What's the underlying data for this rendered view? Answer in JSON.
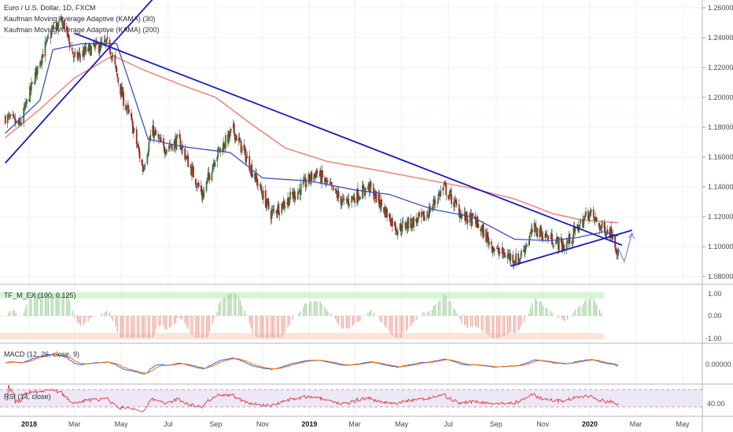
{
  "header": {
    "title": "Euro / U.S. Dollar, 1D, FXCM",
    "studies": [
      "Kaufman Moving Average Adaptive (KAMA) (30)",
      "Kaufman Moving Average Adaptive (KAMA) (200)"
    ]
  },
  "panes": {
    "tfm": {
      "label": "TF_M_EX (100, 0.125)",
      "ticks": [
        "1.00",
        "0.00",
        "-1.00"
      ]
    },
    "macd": {
      "label": "MACD (12, 26, close, 9)",
      "ticks": [
        "0.00000"
      ]
    },
    "rsi": {
      "label": "RSI (14, close)",
      "ticks": [
        "40.00"
      ]
    }
  },
  "colors": {
    "up": "#2e7d32",
    "down": "#b71c1c",
    "kama30": "#3f51b5",
    "kama200": "#ef8a80",
    "trend": "#1a1ab8",
    "grid": "#eef0f3",
    "macd": "#2962ff",
    "signal": "#ff6d00",
    "rsi": "#e53935"
  },
  "chart_data": {
    "type": "candlestick",
    "symbol": "Euro / U.S. Dollar, 1D, FXCM",
    "y_axis_ticks": [
      "1.26000",
      "1.24000",
      "1.22000",
      "1.20000",
      "1.18000",
      "1.16000",
      "1.14000",
      "1.12000",
      "1.10000",
      "1.08000"
    ],
    "ylim": [
      1.075,
      1.265
    ],
    "x_axis_ticks": [
      "2018",
      "Mar",
      "May",
      "Jul",
      "Sep",
      "Nov",
      "2019",
      "Mar",
      "May",
      "Jul",
      "Sep",
      "Nov",
      "2020",
      "Mar",
      "May"
    ],
    "price_path": [
      {
        "date": "2017-12-01",
        "close": 1.187
      },
      {
        "date": "2017-12-20",
        "close": 1.181
      },
      {
        "date": "2018-01-15",
        "close": 1.225
      },
      {
        "date": "2018-02-01",
        "close": 1.246
      },
      {
        "date": "2018-02-15",
        "close": 1.25
      },
      {
        "date": "2018-03-01",
        "close": 1.226
      },
      {
        "date": "2018-03-20",
        "close": 1.232
      },
      {
        "date": "2018-04-15",
        "close": 1.236
      },
      {
        "date": "2018-05-01",
        "close": 1.203
      },
      {
        "date": "2018-05-15",
        "close": 1.182
      },
      {
        "date": "2018-05-29",
        "close": 1.152
      },
      {
        "date": "2018-06-10",
        "close": 1.178
      },
      {
        "date": "2018-06-25",
        "close": 1.166
      },
      {
        "date": "2018-07-15",
        "close": 1.171
      },
      {
        "date": "2018-08-15",
        "close": 1.134
      },
      {
        "date": "2018-08-31",
        "close": 1.16
      },
      {
        "date": "2018-09-24",
        "close": 1.178
      },
      {
        "date": "2018-10-15",
        "close": 1.155
      },
      {
        "date": "2018-11-12",
        "close": 1.122
      },
      {
        "date": "2018-12-15",
        "close": 1.136
      },
      {
        "date": "2019-01-10",
        "close": 1.15
      },
      {
        "date": "2019-02-15",
        "close": 1.129
      },
      {
        "date": "2019-03-20",
        "close": 1.14
      },
      {
        "date": "2019-04-25",
        "close": 1.112
      },
      {
        "date": "2019-06-01",
        "close": 1.12
      },
      {
        "date": "2019-06-25",
        "close": 1.14
      },
      {
        "date": "2019-07-20",
        "close": 1.12
      },
      {
        "date": "2019-08-05",
        "close": 1.117
      },
      {
        "date": "2019-09-01",
        "close": 1.097
      },
      {
        "date": "2019-09-30",
        "close": 1.091
      },
      {
        "date": "2019-10-20",
        "close": 1.112
      },
      {
        "date": "2019-11-29",
        "close": 1.1
      },
      {
        "date": "2019-12-31",
        "close": 1.123
      },
      {
        "date": "2020-01-15",
        "close": 1.113
      },
      {
        "date": "2020-01-31",
        "close": 1.109
      },
      {
        "date": "2020-02-07",
        "close": 1.095
      }
    ],
    "kama30": [
      {
        "date": "2017-12-01",
        "value": 1.176
      },
      {
        "date": "2018-01-15",
        "value": 1.198
      },
      {
        "date": "2018-02-01",
        "value": 1.232
      },
      {
        "date": "2018-03-10",
        "value": 1.236
      },
      {
        "date": "2018-04-25",
        "value": 1.236
      },
      {
        "date": "2018-05-15",
        "value": 1.205
      },
      {
        "date": "2018-06-05",
        "value": 1.172
      },
      {
        "date": "2018-07-20",
        "value": 1.167
      },
      {
        "date": "2018-09-20",
        "value": 1.163
      },
      {
        "date": "2018-11-01",
        "value": 1.146
      },
      {
        "date": "2019-01-01",
        "value": 1.144
      },
      {
        "date": "2019-03-01",
        "value": 1.138
      },
      {
        "date": "2019-04-15",
        "value": 1.135
      },
      {
        "date": "2019-06-10",
        "value": 1.125
      },
      {
        "date": "2019-08-01",
        "value": 1.12
      },
      {
        "date": "2019-09-25",
        "value": 1.105
      },
      {
        "date": "2019-11-10",
        "value": 1.104
      },
      {
        "date": "2019-12-15",
        "value": 1.106
      },
      {
        "date": "2020-01-20",
        "value": 1.11
      },
      {
        "date": "2020-02-07",
        "value": 1.107
      }
    ],
    "kama200": [
      {
        "date": "2017-12-01",
        "value": 1.173
      },
      {
        "date": "2018-01-15",
        "value": 1.192
      },
      {
        "date": "2018-03-01",
        "value": 1.213
      },
      {
        "date": "2018-04-20",
        "value": 1.228
      },
      {
        "date": "2018-06-01",
        "value": 1.218
      },
      {
        "date": "2018-07-20",
        "value": 1.208
      },
      {
        "date": "2018-09-01",
        "value": 1.2
      },
      {
        "date": "2018-10-15",
        "value": 1.183
      },
      {
        "date": "2018-12-01",
        "value": 1.166
      },
      {
        "date": "2019-01-25",
        "value": 1.157
      },
      {
        "date": "2019-04-01",
        "value": 1.151
      },
      {
        "date": "2019-06-01",
        "value": 1.145
      },
      {
        "date": "2019-08-01",
        "value": 1.139
      },
      {
        "date": "2019-09-25",
        "value": 1.132
      },
      {
        "date": "2019-11-15",
        "value": 1.122
      },
      {
        "date": "2019-12-20",
        "value": 1.118
      },
      {
        "date": "2020-02-07",
        "value": 1.116
      }
    ],
    "trendlines": [
      {
        "name": "rising support",
        "from": {
          "date": "2017-12-01",
          "price": 1.156
        },
        "to": {
          "date": "2018-06-20",
          "price": 1.271
        }
      },
      {
        "name": "falling resistance",
        "from": {
          "date": "2018-03-01",
          "price": 1.243
        },
        "to": {
          "date": "2020-02-12",
          "price": 1.101
        }
      },
      {
        "name": "lower support",
        "from": {
          "date": "2019-09-20",
          "price": 1.087
        },
        "to": {
          "date": "2020-02-25",
          "price": 1.111
        }
      }
    ],
    "projection": [
      {
        "date": "2020-02-07",
        "price": 1.099
      },
      {
        "date": "2020-02-15",
        "price": 1.09
      },
      {
        "date": "2020-02-25",
        "price": 1.109
      }
    ],
    "grid": true
  }
}
